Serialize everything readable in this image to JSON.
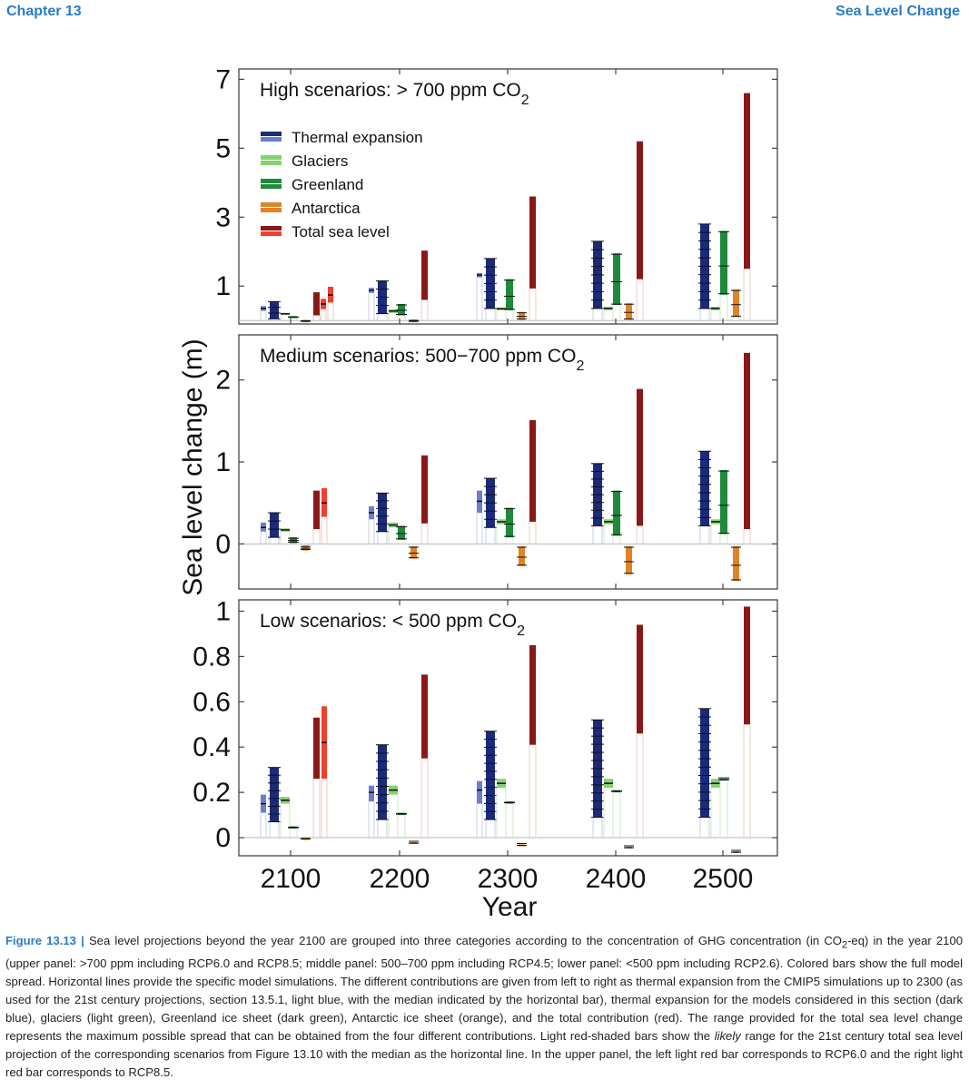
{
  "header": {
    "chapter": "Chapter 13",
    "section": "Sea Level Change"
  },
  "colors": {
    "thermal_light": "#6b7fc9",
    "thermal_dark": "#1b2a7a",
    "glaciers": "#86d36e",
    "greenland": "#1f8a3c",
    "antarctica": "#e08327",
    "total_dark": "#8b1818",
    "total_light": "#f0402c",
    "frame": "#444444"
  },
  "chart_data": {
    "type": "bar",
    "title": "",
    "ylabel": "Sea level change (m)",
    "xlabel": "Year",
    "categories": [
      "2100",
      "2200",
      "2300",
      "2400",
      "2500"
    ],
    "legend": [
      {
        "label": "Thermal expansion",
        "key": "thermal"
      },
      {
        "label": "Glaciers",
        "key": "glaciers"
      },
      {
        "label": "Greenland",
        "key": "greenland"
      },
      {
        "label": "Antarctica",
        "key": "antarctica"
      },
      {
        "label": "Total sea level",
        "key": "total"
      }
    ],
    "panels": [
      {
        "title_main": "High scenarios: > 700 ppm CO",
        "title_sub": "2",
        "ylim": [
          -0.1,
          7.3
        ],
        "yticks": [
          1,
          3,
          5,
          7
        ],
        "bars": [
          {
            "year": "2100",
            "series": "thermal_cmip5",
            "low": 0.28,
            "high": 0.42,
            "median": 0.35
          },
          {
            "year": "2100",
            "series": "thermal",
            "low": 0.05,
            "high": 0.55
          },
          {
            "year": "2100",
            "series": "glaciers",
            "low": 0.17,
            "high": 0.22
          },
          {
            "year": "2100",
            "series": "greenland",
            "low": 0.07,
            "high": 0.13
          },
          {
            "year": "2100",
            "series": "antarctica",
            "low": -0.05,
            "high": 0.02
          },
          {
            "year": "2100",
            "series": "total",
            "low": 0.15,
            "high": 0.82
          },
          {
            "year": "2100",
            "series": "likely_rcp60",
            "low": 0.33,
            "high": 0.63,
            "median": 0.48
          },
          {
            "year": "2100",
            "series": "likely_rcp85",
            "low": 0.52,
            "high": 0.98,
            "median": 0.74
          },
          {
            "year": "2200",
            "series": "thermal_cmip5",
            "low": 0.8,
            "high": 0.95,
            "median": 0.88
          },
          {
            "year": "2200",
            "series": "thermal",
            "low": 0.2,
            "high": 1.15
          },
          {
            "year": "2200",
            "series": "glaciers",
            "low": 0.22,
            "high": 0.33
          },
          {
            "year": "2200",
            "series": "greenland",
            "low": 0.15,
            "high": 0.48
          },
          {
            "year": "2200",
            "series": "antarctica",
            "low": -0.05,
            "high": 0.03
          },
          {
            "year": "2200",
            "series": "total",
            "low": 0.6,
            "high": 2.03
          },
          {
            "year": "2300",
            "series": "thermal_cmip5",
            "low": 1.25,
            "high": 1.38,
            "median": 1.32
          },
          {
            "year": "2300",
            "series": "thermal",
            "low": 0.35,
            "high": 1.8
          },
          {
            "year": "2300",
            "series": "glaciers",
            "low": 0.3,
            "high": 0.38
          },
          {
            "year": "2300",
            "series": "greenland",
            "low": 0.3,
            "high": 1.2
          },
          {
            "year": "2300",
            "series": "antarctica",
            "low": 0.02,
            "high": 0.25
          },
          {
            "year": "2300",
            "series": "total",
            "low": 0.93,
            "high": 3.6
          },
          {
            "year": "2400",
            "series": "thermal",
            "low": 0.35,
            "high": 2.3
          },
          {
            "year": "2400",
            "series": "glaciers",
            "low": 0.3,
            "high": 0.4
          },
          {
            "year": "2400",
            "series": "greenland",
            "low": 0.45,
            "high": 1.95
          },
          {
            "year": "2400",
            "series": "antarctica",
            "low": 0.02,
            "high": 0.5
          },
          {
            "year": "2400",
            "series": "total",
            "low": 1.2,
            "high": 5.2
          },
          {
            "year": "2500",
            "series": "thermal",
            "low": 0.35,
            "high": 2.8
          },
          {
            "year": "2500",
            "series": "glaciers",
            "low": 0.3,
            "high": 0.4
          },
          {
            "year": "2500",
            "series": "greenland",
            "low": 0.75,
            "high": 2.6
          },
          {
            "year": "2500",
            "series": "antarctica",
            "low": 0.1,
            "high": 0.9
          },
          {
            "year": "2500",
            "series": "total",
            "low": 1.5,
            "high": 6.6
          }
        ]
      },
      {
        "title_main": "Medium scenarios: 500−700 ppm CO",
        "title_sub": "2",
        "ylim": [
          -0.55,
          2.55
        ],
        "yticks": [
          0,
          1,
          2
        ],
        "bars": [
          {
            "year": "2100",
            "series": "thermal_cmip5",
            "low": 0.15,
            "high": 0.26,
            "median": 0.2
          },
          {
            "year": "2100",
            "series": "thermal",
            "low": 0.08,
            "high": 0.38
          },
          {
            "year": "2100",
            "series": "glaciers",
            "low": 0.15,
            "high": 0.19
          },
          {
            "year": "2100",
            "series": "greenland",
            "low": 0.01,
            "high": 0.08
          },
          {
            "year": "2100",
            "series": "antarctica",
            "low": -0.08,
            "high": -0.02
          },
          {
            "year": "2100",
            "series": "total",
            "low": 0.18,
            "high": 0.65
          },
          {
            "year": "2100",
            "series": "likely_rcp45",
            "low": 0.33,
            "high": 0.68,
            "median": 0.5
          },
          {
            "year": "2200",
            "series": "thermal_cmip5",
            "low": 0.3,
            "high": 0.46,
            "median": 0.38
          },
          {
            "year": "2200",
            "series": "thermal",
            "low": 0.15,
            "high": 0.62
          },
          {
            "year": "2200",
            "series": "glaciers",
            "low": 0.2,
            "high": 0.26
          },
          {
            "year": "2200",
            "series": "greenland",
            "low": 0.05,
            "high": 0.22
          },
          {
            "year": "2200",
            "series": "antarctica",
            "low": -0.18,
            "high": -0.03
          },
          {
            "year": "2200",
            "series": "total",
            "low": 0.25,
            "high": 1.08
          },
          {
            "year": "2300",
            "series": "thermal_cmip5",
            "low": 0.38,
            "high": 0.65,
            "median": 0.52
          },
          {
            "year": "2300",
            "series": "thermal",
            "low": 0.2,
            "high": 0.8
          },
          {
            "year": "2300",
            "series": "glaciers",
            "low": 0.24,
            "high": 0.3
          },
          {
            "year": "2300",
            "series": "greenland",
            "low": 0.08,
            "high": 0.44
          },
          {
            "year": "2300",
            "series": "antarctica",
            "low": -0.27,
            "high": -0.03
          },
          {
            "year": "2300",
            "series": "total",
            "low": 0.27,
            "high": 1.51
          },
          {
            "year": "2400",
            "series": "thermal",
            "low": 0.22,
            "high": 0.98
          },
          {
            "year": "2400",
            "series": "glaciers",
            "low": 0.24,
            "high": 0.3
          },
          {
            "year": "2400",
            "series": "greenland",
            "low": 0.1,
            "high": 0.65
          },
          {
            "year": "2400",
            "series": "antarctica",
            "low": -0.37,
            "high": -0.03
          },
          {
            "year": "2400",
            "series": "total",
            "low": 0.22,
            "high": 1.89
          },
          {
            "year": "2500",
            "series": "thermal",
            "low": 0.22,
            "high": 1.13
          },
          {
            "year": "2500",
            "series": "glaciers",
            "low": 0.24,
            "high": 0.3
          },
          {
            "year": "2500",
            "series": "greenland",
            "low": 0.12,
            "high": 0.9
          },
          {
            "year": "2500",
            "series": "antarctica",
            "low": -0.45,
            "high": -0.03
          },
          {
            "year": "2500",
            "series": "total",
            "low": 0.18,
            "high": 2.33
          }
        ]
      },
      {
        "title_main": "Low scenarios: < 500 ppm CO",
        "title_sub": "2",
        "ylim": [
          -0.08,
          1.05
        ],
        "yticks": [
          0,
          0.2,
          0.4,
          0.6,
          0.8,
          1
        ],
        "ytick_labels": [
          "0",
          "0.2",
          "0.4",
          "0.6",
          "0.8",
          "1"
        ],
        "bars": [
          {
            "year": "2100",
            "series": "thermal_cmip5",
            "low": 0.11,
            "high": 0.19,
            "median": 0.15
          },
          {
            "year": "2100",
            "series": "thermal",
            "low": 0.07,
            "high": 0.31
          },
          {
            "year": "2100",
            "series": "glaciers",
            "low": 0.15,
            "high": 0.18
          },
          {
            "year": "2100",
            "series": "greenland",
            "low": 0.04,
            "high": 0.05
          },
          {
            "year": "2100",
            "series": "antarctica",
            "low": -0.01,
            "high": -0.0
          },
          {
            "year": "2100",
            "series": "total",
            "low": 0.26,
            "high": 0.53
          },
          {
            "year": "2100",
            "series": "likely_rcp26",
            "low": 0.26,
            "high": 0.58,
            "median": 0.42
          },
          {
            "year": "2200",
            "series": "thermal_cmip5",
            "low": 0.16,
            "high": 0.23,
            "median": 0.2
          },
          {
            "year": "2200",
            "series": "thermal",
            "low": 0.08,
            "high": 0.41
          },
          {
            "year": "2200",
            "series": "glaciers",
            "low": 0.19,
            "high": 0.23
          },
          {
            "year": "2200",
            "series": "greenland",
            "low": 0.1,
            "high": 0.11
          },
          {
            "year": "2200",
            "series": "antarctica",
            "low": -0.02,
            "high": -0.02
          },
          {
            "year": "2200",
            "series": "total",
            "low": 0.35,
            "high": 0.72
          },
          {
            "year": "2300",
            "series": "thermal_cmip5",
            "low": 0.15,
            "high": 0.25,
            "median": 0.21
          },
          {
            "year": "2300",
            "series": "thermal",
            "low": 0.08,
            "high": 0.47
          },
          {
            "year": "2300",
            "series": "glaciers",
            "low": 0.22,
            "high": 0.26
          },
          {
            "year": "2300",
            "series": "greenland",
            "low": 0.15,
            "high": 0.16
          },
          {
            "year": "2300",
            "series": "antarctica",
            "low": -0.03,
            "high": -0.03
          },
          {
            "year": "2300",
            "series": "total",
            "low": 0.41,
            "high": 0.85
          },
          {
            "year": "2400",
            "series": "thermal",
            "low": 0.09,
            "high": 0.52
          },
          {
            "year": "2400",
            "series": "glaciers",
            "low": 0.22,
            "high": 0.26
          },
          {
            "year": "2400",
            "series": "greenland",
            "low": 0.2,
            "high": 0.21
          },
          {
            "year": "2400",
            "series": "antarctica",
            "low": -0.04,
            "high": -0.04
          },
          {
            "year": "2400",
            "series": "total",
            "low": 0.46,
            "high": 0.94
          },
          {
            "year": "2500",
            "series": "thermal",
            "low": 0.09,
            "high": 0.57
          },
          {
            "year": "2500",
            "series": "glaciers",
            "low": 0.22,
            "high": 0.26
          },
          {
            "year": "2500",
            "series": "greenland",
            "low": 0.26,
            "high": 0.26
          },
          {
            "year": "2500",
            "series": "antarctica",
            "low": -0.06,
            "high": -0.06
          },
          {
            "year": "2500",
            "series": "total",
            "low": 0.5,
            "high": 1.02
          }
        ]
      }
    ]
  },
  "caption": {
    "label": "Figure 13.13 |",
    "text_1": " Sea level projections beyond the year 2100 are grouped into three categories according to the concentration of GHG concentration (in CO",
    "sub_2": "2",
    "text_2": "-eq) in the year 2100 (upper panel: >700 ppm including RCP6.0 and RCP8.5; middle panel: 500–700 ppm including RCP4.5; lower panel: <500 ppm including RCP2.6). Colored bars show the full model spread. Horizontal lines provide the specific model simulations. The different contributions are given from left to right as thermal expansion from the CMIP5 simulations up to 2300 (as used for the 21st century projections, section 13.5.1, light blue, with the median indicated by the horizontal bar), thermal expansion for the models considered in this section (dark blue), glaciers (light green), Greenland ice sheet (dark green), Antarctic ice sheet (orange), and the total contribution (red). The range provided for the total sea level change represents the maximum possible spread that can be obtained from the four different contributions. Light red-shaded bars show the ",
    "italic": "likely",
    "text_3": " range for the 21st century total sea level projection of the corresponding scenarios from Figure 13.10 with the median as the horizontal line. In the upper panel, the left light red bar corresponds to RCP6.0 and the right light red bar corresponds to RCP8.5."
  }
}
